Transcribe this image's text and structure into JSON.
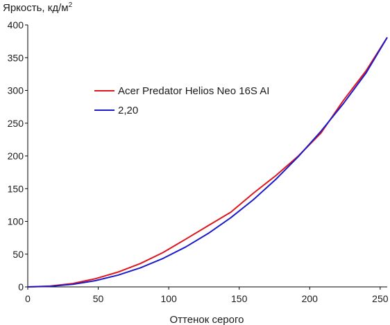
{
  "chart_data": {
    "type": "line",
    "ylabel": "Яркость, кд/м",
    "ylabel_sup": "2",
    "xlabel": "Оттенок серого",
    "xlim": [
      0,
      255
    ],
    "ylim": [
      0,
      400
    ],
    "x_ticks": [
      "0",
      "50",
      "100",
      "150",
      "200",
      "250"
    ],
    "y_ticks": [
      "0",
      "50",
      "100",
      "150",
      "200",
      "250",
      "300",
      "350",
      "400"
    ],
    "grid": false,
    "legend_position": "upper-left",
    "series": [
      {
        "name": "Acer Predator Helios Neo 16S AI",
        "color": "#e0161e",
        "x": [
          0,
          16,
          32,
          48,
          64,
          80,
          96,
          112,
          128,
          144,
          160,
          176,
          192,
          208,
          224,
          240,
          255
        ],
        "y": [
          0,
          1.3,
          5.2,
          12.5,
          22.6,
          35.8,
          52.5,
          72.8,
          93.5,
          114,
          143,
          170,
          200,
          235,
          285,
          330,
          381
        ]
      },
      {
        "name": "2,20",
        "color": "#1a1acc",
        "x": [
          0,
          16,
          32,
          48,
          64,
          80,
          96,
          112,
          128,
          144,
          160,
          176,
          192,
          208,
          224,
          240,
          255
        ],
        "y": [
          0,
          0.86,
          3.9,
          9.5,
          17.9,
          29.2,
          43.5,
          60.9,
          81.6,
          105.6,
          133.1,
          164.3,
          199.1,
          237.7,
          280.2,
          326.7,
          381
        ]
      }
    ]
  }
}
